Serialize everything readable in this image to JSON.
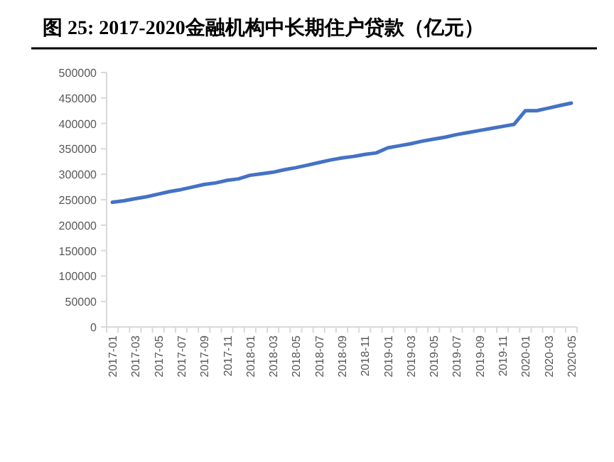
{
  "chart_data": {
    "type": "line",
    "title": "图 25:  2017-2020金融机构中长期住户贷款（亿元）",
    "categories": [
      "2017-01",
      null,
      "2017-03",
      null,
      "2017-05",
      null,
      "2017-07",
      null,
      "2017-09",
      null,
      "2017-11",
      null,
      "2018-01",
      null,
      "2018-03",
      null,
      "2018-05",
      null,
      "2018-07",
      null,
      "2018-09",
      null,
      "2018-11",
      null,
      "2019-01",
      null,
      "2019-03",
      null,
      "2019-05",
      null,
      "2019-07",
      null,
      "2019-09",
      null,
      "2019-11",
      null,
      "2020-01",
      null,
      "2020-03",
      null,
      "2020-05"
    ],
    "series": [
      {
        "color": "#4472c4",
        "values": [
          245000,
          248000,
          252000,
          256000,
          261000,
          266000,
          270000,
          275000,
          280000,
          283000,
          288000,
          291000,
          298000,
          301000,
          304000,
          309000,
          313000,
          318000,
          323000,
          328000,
          332000,
          335000,
          339000,
          342000,
          352000,
          356000,
          360000,
          365000,
          369000,
          373000,
          378000,
          382000,
          386000,
          390000,
          394000,
          398000,
          425000,
          425000,
          430000,
          435000,
          440000
        ]
      }
    ],
    "ylim": [
      0,
      500000
    ],
    "yticks": [
      0,
      50000,
      100000,
      150000,
      200000,
      250000,
      300000,
      350000,
      400000,
      450000,
      500000
    ],
    "grid": false,
    "marker": "none",
    "line_style": "solid"
  }
}
